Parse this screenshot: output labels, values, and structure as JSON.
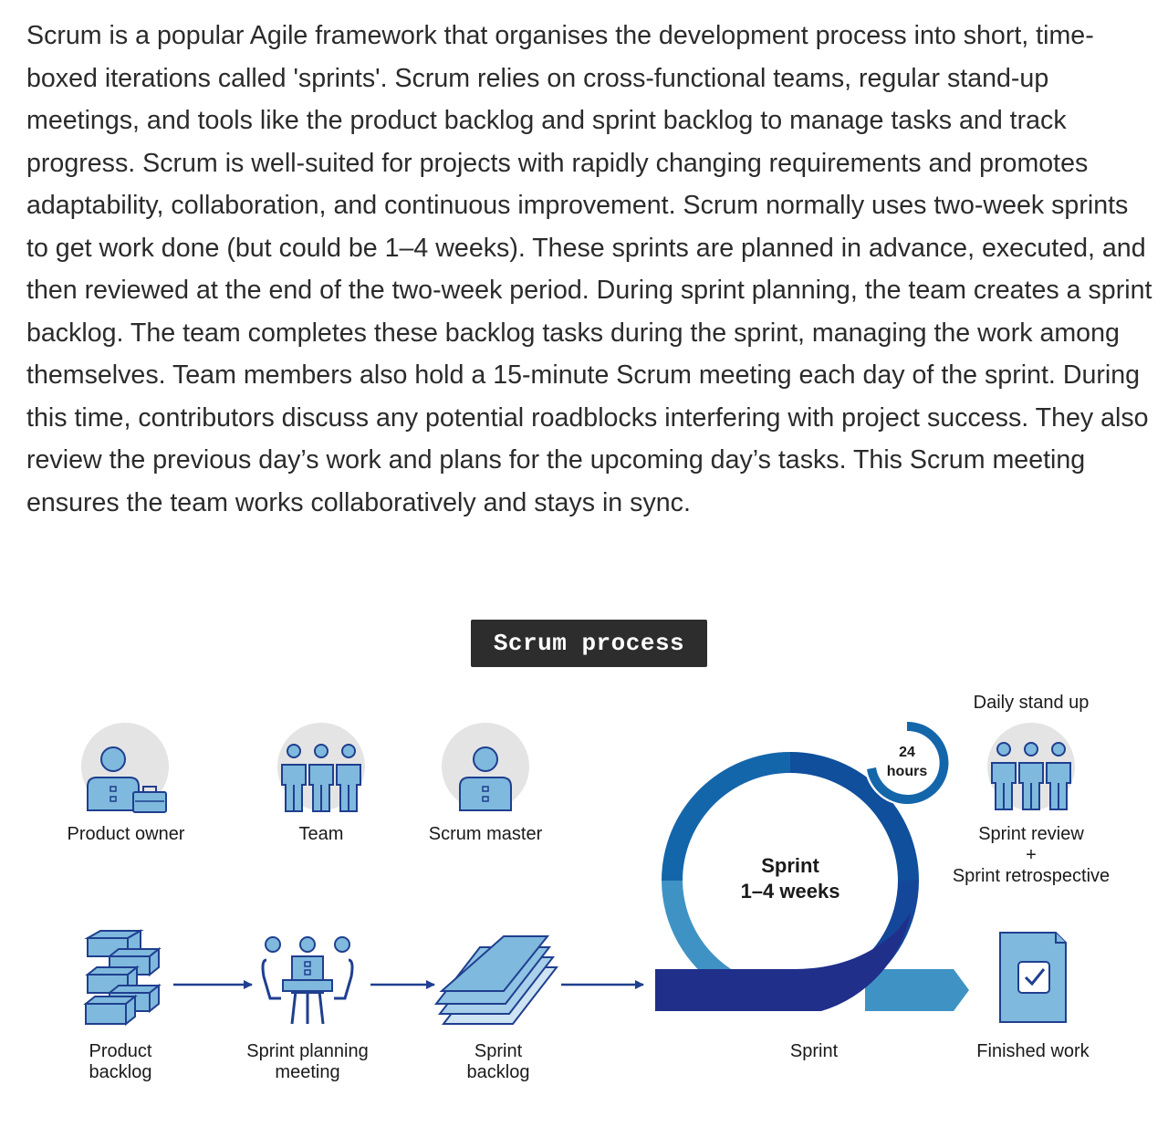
{
  "paragraph": "Scrum is a popular Agile framework that organises the development process into short, time-boxed iterations called 'sprints'. Scrum relies on cross-functional teams, regular stand-up meetings, and tools like the product backlog and sprint backlog to manage tasks and track progress. Scrum is well-suited for projects with rapidly changing requirements and promotes adaptability, collaboration, and continuous improvement. Scrum normally uses two-week sprints to get work done (but could be 1–4 weeks). These sprints are planned in advance, executed, and then reviewed at the end of the two-week period. During sprint planning, the team creates a sprint backlog. The team completes these backlog tasks during the sprint, managing the work among themselves. Team members also hold a 15-minute Scrum meeting each day of the sprint. During this time, contributors discuss any potential roadblocks interfering with project success. They also review the previous day’s work and plans for the upcoming day’s tasks. This Scrum meeting ensures the team works collaboratively and stays in sync.",
  "diagram": {
    "title": "Scrum process",
    "roles": {
      "product_owner": "Product owner",
      "team": "Team",
      "scrum_master": "Scrum master"
    },
    "daily_standup": "Daily stand up",
    "cycle": {
      "hours_value": "24",
      "hours_unit": "hours",
      "sprint_label": "Sprint",
      "sprint_duration": "1–4 weeks"
    },
    "review": {
      "sprint_review": "Sprint review",
      "plus": "+",
      "sprint_retrospective": "Sprint retrospective"
    },
    "steps": {
      "product_backlog_line1": "Product",
      "product_backlog_line2": "backlog",
      "planning_line1": "Sprint planning",
      "planning_line2": "meeting",
      "sprint_backlog_line1": "Sprint",
      "sprint_backlog_line2": "backlog",
      "sprint": "Sprint",
      "finished_work": "Finished work"
    },
    "colors": {
      "icon_fill": "#7fb9dd",
      "icon_stroke": "#1f3f8f",
      "circle_bg": "#e4e4e4",
      "dark_navy": "#1f2f8a",
      "mid_blue": "#1466ab",
      "light_blue": "#3f93c4",
      "title_bg": "#2d2d2d"
    }
  }
}
